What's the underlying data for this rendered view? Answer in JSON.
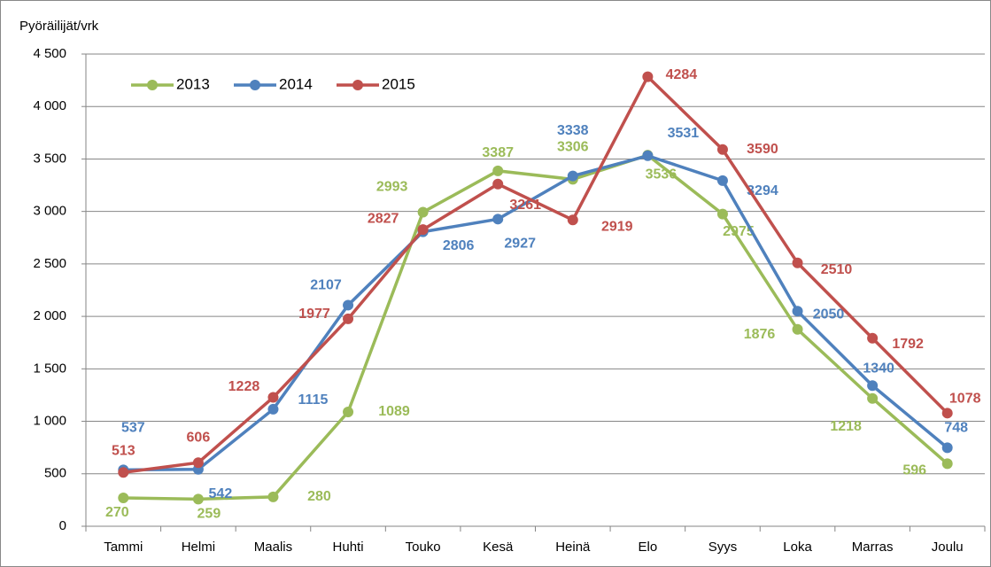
{
  "chart_data": {
    "type": "line",
    "y_label": "Pyöräilijät/vrk",
    "categories": [
      "Tammi",
      "Helmi",
      "Maalis",
      "Huhti",
      "Touko",
      "Kesä",
      "Heinä",
      "Elo",
      "Syys",
      "Loka",
      "Marras",
      "Joulu"
    ],
    "series": [
      {
        "name": "2013",
        "color": "#9bbb59",
        "values": [
          270,
          259,
          280,
          1089,
          2993,
          3387,
          3306,
          3536,
          2975,
          1876,
          1218,
          596
        ]
      },
      {
        "name": "2014",
        "color": "#4f81bd",
        "values": [
          537,
          542,
          1115,
          2107,
          2806,
          2927,
          3338,
          3531,
          3294,
          2050,
          1340,
          748
        ]
      },
      {
        "name": "2015",
        "color": "#c0504d",
        "values": [
          513,
          606,
          1228,
          1977,
          2827,
          3261,
          2919,
          4284,
          3590,
          2510,
          1792,
          1078
        ]
      }
    ],
    "ylim": [
      0,
      4500
    ],
    "yticks": [
      0,
      500,
      {
        "value": 1000,
        "label": "1 000"
      },
      {
        "value": 1500,
        "label": "1 500"
      },
      {
        "value": 2000,
        "label": "2 000"
      },
      {
        "value": 2500,
        "label": "2 500"
      },
      {
        "value": 3000,
        "label": "3 000"
      },
      {
        "value": 3500,
        "label": "3 500"
      },
      {
        "value": 4000,
        "label": "4 000"
      },
      {
        "value": 4500,
        "label": "4 500"
      }
    ],
    "grid": true,
    "legend": "top-left"
  }
}
